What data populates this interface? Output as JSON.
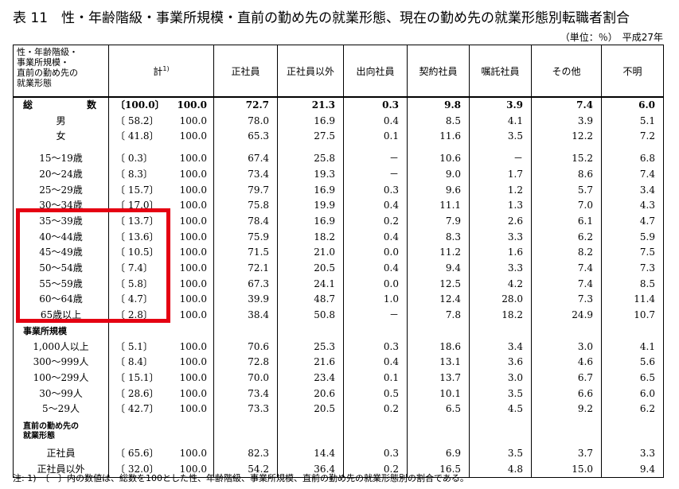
{
  "title": "表 11　性・年齢階級・事業所規模・直前の勤め先の就業形態、現在の勤め先の就業形態別転職者割合",
  "unit": "（単位：％）　平成27年",
  "footnote": "注: 1)　〔　〕内の数値は、総数を100とした性、年齢階級、事業所規模、直前の勤め先の就業形態別の割合である。",
  "headers": {
    "category": "性・年齢階級・\n事業所規模・\n直前の勤め先の\n就業形態",
    "total": "計",
    "total_note": "1)",
    "cols": [
      "正社員",
      "正社員以外",
      "出向社員",
      "契約社員",
      "嘱託社員",
      "その他",
      "不明"
    ]
  },
  "rows": [
    {
      "label": "総　数",
      "share": "〔100.0〕",
      "total": "100.0",
      "values": [
        "72.7",
        "21.3",
        "0.3",
        "9.8",
        "3.9",
        "7.4",
        "6.0"
      ]
    },
    {
      "label": "男",
      "share": "〔 58.2〕",
      "total": "100.0",
      "values": [
        "78.0",
        "16.9",
        "0.4",
        "8.5",
        "4.1",
        "3.9",
        "5.1"
      ]
    },
    {
      "label": "女",
      "share": "〔 41.8〕",
      "total": "100.0",
      "values": [
        "65.3",
        "27.5",
        "0.1",
        "11.6",
        "3.5",
        "12.2",
        "7.2"
      ]
    },
    {
      "label": "15～19歳",
      "share": "〔  0.3〕",
      "total": "100.0",
      "values": [
        "67.4",
        "25.8",
        "－",
        "10.6",
        "－",
        "15.2",
        "6.8"
      ]
    },
    {
      "label": "20～24歳",
      "share": "〔  8.3〕",
      "total": "100.0",
      "values": [
        "73.4",
        "19.3",
        "－",
        "9.0",
        "1.7",
        "8.6",
        "7.4"
      ]
    },
    {
      "label": "25～29歳",
      "share": "〔 15.7〕",
      "total": "100.0",
      "values": [
        "79.7",
        "16.9",
        "0.3",
        "9.6",
        "1.2",
        "5.7",
        "3.4"
      ]
    },
    {
      "label": "30～34歳",
      "share": "〔 17.0〕",
      "total": "100.0",
      "values": [
        "75.8",
        "19.9",
        "0.4",
        "11.1",
        "1.3",
        "7.0",
        "4.3"
      ]
    },
    {
      "label": "35～39歳",
      "share": "〔 13.7〕",
      "total": "100.0",
      "values": [
        "78.4",
        "16.9",
        "0.2",
        "7.9",
        "2.6",
        "6.1",
        "4.7"
      ]
    },
    {
      "label": "40～44歳",
      "share": "〔 13.6〕",
      "total": "100.0",
      "values": [
        "75.9",
        "18.2",
        "0.4",
        "8.3",
        "3.3",
        "6.2",
        "5.9"
      ]
    },
    {
      "label": "45～49歳",
      "share": "〔 10.5〕",
      "total": "100.0",
      "values": [
        "71.5",
        "21.0",
        "0.0",
        "11.2",
        "1.6",
        "8.2",
        "7.5"
      ]
    },
    {
      "label": "50～54歳",
      "share": "〔  7.4〕",
      "total": "100.0",
      "values": [
        "72.1",
        "20.5",
        "0.4",
        "9.4",
        "3.3",
        "7.4",
        "7.3"
      ]
    },
    {
      "label": "55～59歳",
      "share": "〔  5.8〕",
      "total": "100.0",
      "values": [
        "67.3",
        "24.1",
        "0.0",
        "12.5",
        "4.2",
        "7.4",
        "8.5"
      ]
    },
    {
      "label": "60～64歳",
      "share": "〔  4.7〕",
      "total": "100.0",
      "values": [
        "39.9",
        "48.7",
        "1.0",
        "12.4",
        "28.0",
        "7.3",
        "11.4"
      ]
    },
    {
      "label": "65歳以上",
      "share": "〔  2.8〕",
      "total": "100.0",
      "values": [
        "38.4",
        "50.8",
        "－",
        "7.8",
        "18.2",
        "24.9",
        "10.7"
      ]
    },
    {
      "label": "事業所規模",
      "section": true
    },
    {
      "label": "1,000人以上",
      "share": "〔  5.1〕",
      "total": "100.0",
      "values": [
        "70.6",
        "25.3",
        "0.3",
        "18.6",
        "3.4",
        "3.0",
        "4.1"
      ]
    },
    {
      "label": "300～999人",
      "share": "〔  8.4〕",
      "total": "100.0",
      "values": [
        "72.8",
        "21.6",
        "0.4",
        "13.1",
        "3.6",
        "4.6",
        "5.6"
      ]
    },
    {
      "label": "100～299人",
      "share": "〔 15.1〕",
      "total": "100.0",
      "values": [
        "70.0",
        "23.4",
        "0.1",
        "13.7",
        "3.0",
        "6.7",
        "6.5"
      ]
    },
    {
      "label": "30～99人",
      "share": "〔 28.6〕",
      "total": "100.0",
      "values": [
        "73.4",
        "20.6",
        "0.5",
        "10.1",
        "3.5",
        "6.6",
        "6.0"
      ]
    },
    {
      "label": "5～29人",
      "share": "〔 42.7〕",
      "total": "100.0",
      "values": [
        "73.3",
        "20.5",
        "0.2",
        "6.5",
        "4.5",
        "9.2",
        "6.2"
      ]
    },
    {
      "label": "直前の勤め先の\n就業形態",
      "section": true
    },
    {
      "label": "正社員",
      "share": "〔 65.6〕",
      "total": "100.0",
      "values": [
        "82.3",
        "14.4",
        "0.3",
        "6.9",
        "3.5",
        "3.7",
        "3.3"
      ]
    },
    {
      "label": "正社員以外",
      "share": "〔 32.0〕",
      "total": "100.0",
      "values": [
        "54.2",
        "36.4",
        "0.2",
        "16.5",
        "4.8",
        "15.0",
        "9.4"
      ]
    }
  ],
  "highlight_color": "#e50012"
}
